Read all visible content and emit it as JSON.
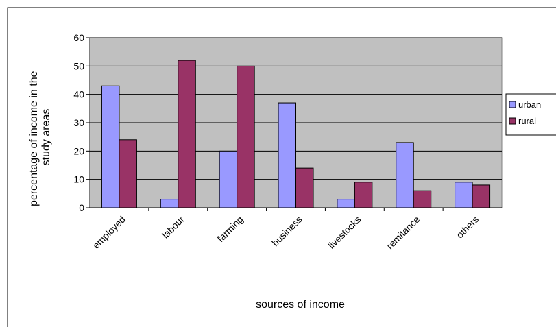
{
  "chart_data": {
    "type": "bar",
    "title": "",
    "categories": [
      "employed",
      "labour",
      "farming",
      "business",
      "livestocks",
      "remitance",
      "others"
    ],
    "series": [
      {
        "name": "urban",
        "values": [
          43,
          3,
          20,
          37,
          3,
          23,
          9
        ],
        "color": "#9999ff"
      },
      {
        "name": "rural",
        "values": [
          24,
          52,
          50,
          14,
          9,
          6,
          8
        ],
        "color": "#993366"
      }
    ],
    "xlabel": "sources of income",
    "ylabel": "percentage of income in the study areas",
    "ylabel_lines": [
      "percentage of income in the",
      "study areas"
    ],
    "yticks": [
      "0",
      "10",
      "20",
      "30",
      "40",
      "50",
      "60"
    ],
    "ylim": [
      0,
      60
    ],
    "grid": true,
    "plot_background": "#c0c0c0",
    "legend_position": "right"
  }
}
